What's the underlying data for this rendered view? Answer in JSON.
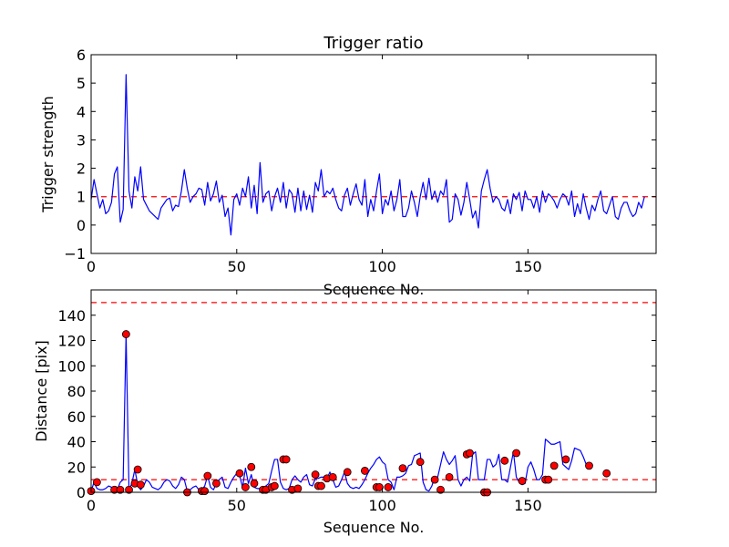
{
  "colors": {
    "series": "#0000ff",
    "reference": "#ff0000",
    "marker_fill": "#ff0000",
    "marker_edge": "#000000"
  },
  "chart_data": [
    {
      "type": "line",
      "title": "Trigger ratio",
      "xlabel": "Sequence No.",
      "ylabel": "Trigger strength",
      "xlim": [
        0,
        194
      ],
      "ylim": [
        -1,
        6
      ],
      "xticks": [
        0,
        50,
        100,
        150
      ],
      "yticks": [
        -1,
        0,
        1,
        2,
        3,
        4,
        5,
        6
      ],
      "xtick_labels": [
        "0",
        "50",
        "100",
        "150"
      ],
      "ytick_labels": [
        "−1",
        "0",
        "1",
        "2",
        "3",
        "4",
        "5",
        "6"
      ],
      "reference_lines": [
        {
          "y": 1.0,
          "style": "dashed",
          "color": "#ff0000"
        }
      ],
      "series": [
        {
          "color": "#0000ff",
          "y": [
            0.9,
            1.6,
            1.1,
            0.6,
            0.9,
            0.4,
            0.5,
            0.8,
            1.8,
            2.05,
            0.1,
            0.55,
            5.3,
            1.2,
            0.6,
            1.7,
            1.2,
            2.05,
            0.9,
            0.7,
            0.5,
            0.4,
            0.3,
            0.2,
            0.6,
            0.75,
            0.9,
            0.95,
            0.5,
            0.7,
            0.65,
            1.2,
            1.95,
            1.3,
            0.8,
            1.0,
            1.1,
            1.3,
            1.25,
            0.7,
            1.5,
            0.85,
            1.1,
            1.55,
            0.8,
            1.05,
            0.3,
            0.6,
            -0.35,
            0.9,
            1.1,
            0.7,
            1.3,
            1.0,
            1.7,
            0.6,
            1.4,
            0.4,
            2.2,
            0.8,
            1.1,
            1.2,
            0.5,
            1.0,
            1.3,
            0.8,
            1.5,
            0.6,
            1.25,
            1.1,
            0.45,
            1.3,
            0.5,
            1.2,
            0.55,
            1.05,
            0.45,
            1.5,
            1.2,
            1.95,
            1.0,
            1.2,
            1.1,
            1.3,
            0.9,
            0.6,
            0.5,
            1.05,
            1.3,
            0.7,
            1.1,
            1.45,
            0.9,
            0.7,
            1.6,
            0.3,
            0.9,
            0.5,
            1.2,
            1.8,
            0.4,
            0.9,
            0.7,
            1.2,
            0.5,
            0.9,
            1.6,
            0.3,
            0.3,
            0.6,
            1.2,
            0.8,
            0.3,
            1.0,
            1.5,
            0.9,
            1.65,
            0.9,
            1.2,
            0.8,
            1.2,
            1.05,
            1.6,
            0.1,
            0.2,
            1.1,
            0.9,
            0.35,
            0.8,
            1.5,
            0.9,
            0.25,
            0.5,
            -0.1,
            1.2,
            1.6,
            1.95,
            1.3,
            0.8,
            1.0,
            0.9,
            0.6,
            0.5,
            0.9,
            0.4,
            1.1,
            0.9,
            1.15,
            0.5,
            1.2,
            0.9,
            0.9,
            0.6,
            1.0,
            0.45,
            1.2,
            0.8,
            1.1,
            1.0,
            0.85,
            0.6,
            0.9,
            1.1,
            1.0,
            0.7,
            1.2,
            0.3,
            0.75,
            0.4,
            1.1,
            0.6,
            0.2,
            0.7,
            0.5,
            0.9,
            1.2,
            0.5,
            0.4,
            0.7,
            1.0,
            0.3,
            0.2,
            0.6,
            0.8,
            0.8,
            0.5,
            0.3,
            0.4,
            0.8,
            0.6,
            1.0
          ]
        }
      ]
    },
    {
      "type": "line",
      "title": "",
      "xlabel": "Sequence No.",
      "ylabel": "Distance [pix]",
      "xlim": [
        0,
        194
      ],
      "ylim": [
        0,
        160
      ],
      "xticks": [
        0,
        50,
        100,
        150
      ],
      "yticks": [
        0,
        20,
        40,
        60,
        80,
        100,
        120,
        140
      ],
      "xtick_labels": [
        "0",
        "50",
        "100",
        "150"
      ],
      "ytick_labels": [
        "0",
        "20",
        "40",
        "60",
        "80",
        "100",
        "120",
        "140"
      ],
      "reference_lines": [
        {
          "y": 150,
          "style": "dashed",
          "color": "#ff0000"
        },
        {
          "y": 10,
          "style": "dashed",
          "color": "#ff0000"
        }
      ],
      "series": [
        {
          "color": "#0000ff",
          "y": [
            1,
            8,
            3,
            2,
            2,
            3,
            5,
            4,
            2,
            2,
            8,
            10,
            125,
            2,
            7,
            18,
            6,
            2,
            5,
            10,
            8,
            4,
            3,
            2,
            4,
            8,
            10,
            9,
            5,
            3,
            6,
            12,
            10,
            1,
            2,
            4,
            5,
            2,
            2,
            5,
            13,
            4,
            2,
            7,
            10,
            12,
            4,
            3,
            8,
            12,
            15,
            13,
            4,
            19,
            7,
            14,
            4,
            3,
            3,
            4,
            5,
            7,
            17,
            26,
            26,
            8,
            3,
            2,
            3,
            10,
            13,
            10,
            8,
            12,
            14,
            6,
            5,
            11,
            11,
            12,
            12,
            11,
            16,
            10,
            4,
            5,
            10,
            16,
            7,
            4,
            3,
            4,
            3,
            6,
            10,
            15,
            19,
            22,
            26,
            28,
            24,
            22,
            10,
            8,
            2,
            12,
            12,
            13,
            15,
            21,
            22,
            29,
            30,
            31,
            8,
            2,
            1,
            5,
            12,
            12,
            22,
            32,
            26,
            22,
            25,
            29,
            10,
            5,
            10,
            12,
            9,
            30,
            32,
            10,
            10,
            10,
            26,
            26,
            20,
            22,
            30,
            10,
            10,
            8,
            20,
            32,
            12,
            8,
            6,
            7,
            20,
            24,
            18,
            10,
            10,
            14,
            42,
            40,
            38,
            38,
            39,
            40,
            22,
            20,
            18,
            25,
            35,
            34,
            33,
            28,
            22
          ]
        }
      ],
      "markers": {
        "x": [
          0,
          2,
          8,
          10,
          12,
          13,
          15,
          16,
          17,
          33,
          38,
          39,
          40,
          43,
          51,
          53,
          55,
          56,
          59,
          60,
          62,
          63,
          66,
          67,
          69,
          71,
          77,
          78,
          79,
          81,
          83,
          88,
          94,
          98,
          99,
          102,
          107,
          113,
          118,
          120,
          123,
          129,
          130,
          135,
          136,
          142,
          146,
          148,
          156,
          157,
          159,
          163,
          171,
          177
        ],
        "y": [
          1,
          8,
          2,
          2,
          125,
          2,
          7,
          18,
          6,
          0,
          1,
          1,
          13,
          7,
          15,
          4,
          20,
          7,
          2,
          2,
          4,
          5,
          26,
          26,
          2,
          3,
          14,
          5,
          5,
          11,
          12,
          16,
          17,
          4,
          4,
          4,
          19,
          24,
          10,
          2,
          12,
          30,
          31,
          0,
          0,
          25,
          31,
          9,
          10,
          10,
          21,
          26,
          21,
          15
        ]
      }
    }
  ]
}
